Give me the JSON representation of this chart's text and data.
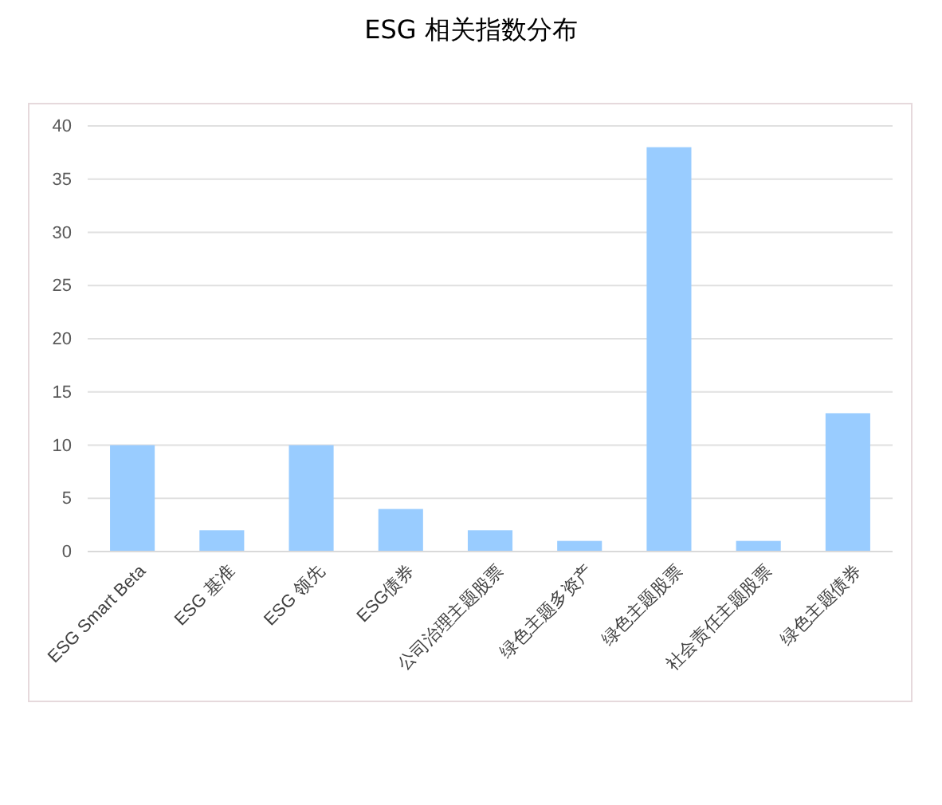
{
  "chart_data": {
    "type": "bar",
    "title": "ESG 相关指数分布",
    "categories": [
      "ESG Smart Beta",
      "ESG 基准",
      "ESG 领先",
      "ESG债券",
      "公司治理主题股票",
      "绿色主题多资产",
      "绿色主题股票",
      "社会责任主题股票",
      "绿色主题债券"
    ],
    "values": [
      10,
      2,
      10,
      4,
      2,
      1,
      38,
      1,
      13
    ],
    "color": "#99ccff",
    "ylim": [
      0,
      40
    ],
    "yticks": [
      0,
      5,
      10,
      15,
      20,
      25,
      30,
      35,
      40
    ],
    "grid": "y"
  }
}
